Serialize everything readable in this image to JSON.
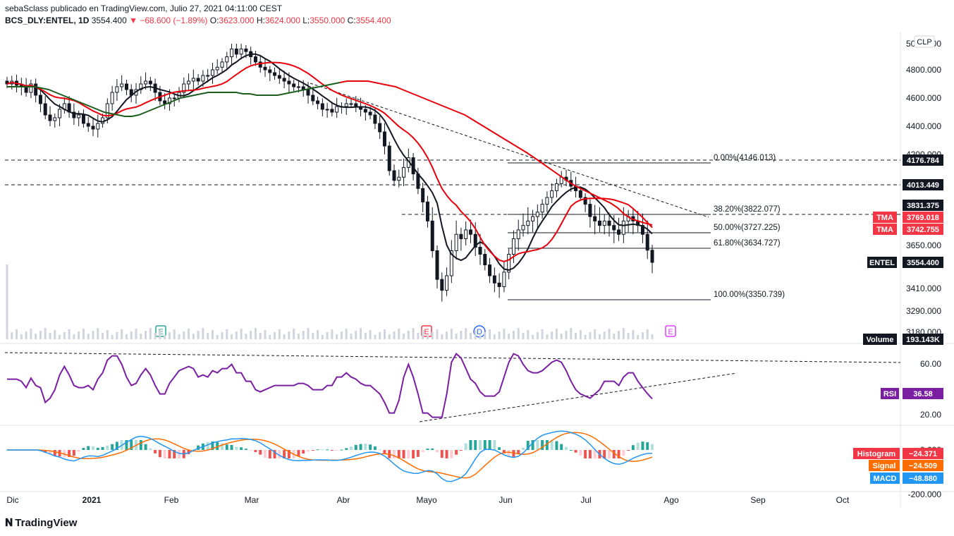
{
  "header": {
    "publisher": "sebaSclass publicado en TradingView.com, Julio 27, 2021 04:11:00 CEST",
    "symbol": "BCS_DLY:ENTEL, 1D",
    "last": "3554.400",
    "change": "▼ −68.600 (−1.89%)",
    "o_label": "O:",
    "o_val": "3623.000",
    "h_label": "H:",
    "h_val": "3624.000",
    "l_label": "L:",
    "l_val": "3550.000",
    "c_label": "C:",
    "c_val": "3554.400"
  },
  "footer": {
    "brand": "TradingView"
  },
  "chart_data": {
    "type": "candlestick",
    "currency": "CLP",
    "price_axis_ticks": [
      "5000.000",
      "4800.000",
      "4600.000",
      "4400.000",
      "4200.000",
      "3650.000",
      "3410.000",
      "3290.000",
      "3180.000"
    ],
    "time_axis_labels": [
      "Dic",
      "2021",
      "Feb",
      "Mar",
      "Abr",
      "Mayo",
      "Jun",
      "Jul",
      "Ago",
      "Sep",
      "Oct"
    ],
    "price_labels": [
      {
        "text": "4176.784",
        "style": "black"
      },
      {
        "text": "4013.449",
        "style": "black"
      },
      {
        "text": "3831.375",
        "style": "black"
      },
      {
        "name": "TMA",
        "text": "3769.018",
        "style": "red"
      },
      {
        "name": "TMA",
        "text": "3742.755",
        "style": "red"
      },
      {
        "name": "ENTEL",
        "text": "3554.400",
        "style": "black"
      },
      {
        "name": "Volume",
        "text": "193.143K",
        "style": "black"
      }
    ],
    "fib_levels": [
      {
        "label": "0.00%(4146.013)"
      },
      {
        "label": "38.20%(3822.077)"
      },
      {
        "label": "50.00%(3727.225)"
      },
      {
        "label": "61.80%(3634.727)"
      },
      {
        "label": "100.00%(3350.739)"
      }
    ],
    "events": [
      "E",
      "E",
      "D",
      "E"
    ],
    "closes": [
      4700,
      4720,
      4690,
      4680,
      4640,
      4700,
      4620,
      4560,
      4480,
      4440,
      4460,
      4520,
      4560,
      4500,
      4460,
      4480,
      4420,
      4400,
      4380,
      4420,
      4460,
      4560,
      4640,
      4680,
      4700,
      4660,
      4620,
      4660,
      4700,
      4720,
      4700,
      4640,
      4580,
      4560,
      4600,
      4600,
      4640,
      4700,
      4720,
      4740,
      4720,
      4760,
      4760,
      4800,
      4820,
      4860,
      4900,
      4960,
      4920,
      4960,
      4940,
      4900,
      4860,
      4820,
      4800,
      4780,
      4760,
      4740,
      4720,
      4700,
      4680,
      4680,
      4660,
      4620,
      4580,
      4560,
      4520,
      4520,
      4500,
      4540,
      4540,
      4560,
      4560,
      4540,
      4520,
      4500,
      4480,
      4420,
      4360,
      4260,
      4100,
      4040,
      4060,
      4120,
      4180,
      4080,
      3980,
      3860,
      3760,
      3620,
      3460,
      3400,
      3480,
      3620,
      3700,
      3680,
      3720,
      3700,
      3640,
      3600,
      3540,
      3480,
      3440,
      3420,
      3500,
      3600,
      3680,
      3720,
      3740,
      3760,
      3780,
      3800,
      3840,
      3900,
      3960,
      4020,
      4060,
      4040,
      4000,
      3960,
      3900,
      3840,
      3780,
      3760,
      3740,
      3760,
      3740,
      3720,
      3700,
      3760,
      3780,
      3760,
      3740,
      3700,
      3623,
      3554
    ],
    "tma_slow": [
      4680,
      4680,
      4680,
      4680,
      4680,
      4670,
      4660,
      4640,
      4620,
      4600,
      4580,
      4560,
      4540,
      4520,
      4500,
      4490,
      4480,
      4470,
      4470,
      4480,
      4500,
      4520,
      4540,
      4560,
      4580,
      4600,
      4610,
      4620,
      4630,
      4640,
      4640,
      4640,
      4640,
      4640,
      4630,
      4630,
      4620,
      4620,
      4620,
      4620,
      4630,
      4640,
      4650,
      4660,
      4670,
      4680,
      4690,
      4700,
      4710,
      4720,
      4720,
      4720,
      4720,
      4710,
      4700,
      4690,
      4680,
      4660,
      4640,
      4620,
      4600,
      4580,
      4560,
      4540,
      4520,
      4500,
      4480,
      4450,
      4420,
      4390,
      4360,
      4330,
      4300,
      4270,
      4240,
      4210,
      4180,
      4150,
      4120,
      4090,
      4060,
      4030,
      4000,
      3970,
      3940,
      3910,
      3880,
      3850,
      3820,
      3790,
      3770,
      3760,
      3750,
      3742
    ]
  },
  "indicators": {
    "rsi": {
      "name": "RSI",
      "value": "36.58",
      "ticks": [
        "60.00",
        "20.00"
      ]
    },
    "macd": {
      "ticks": [
        "0.000",
        "-200.000"
      ],
      "histogram": {
        "name": "Histogram",
        "value": "−24.371"
      },
      "signal": {
        "name": "Signal",
        "value": "−24.509"
      },
      "macd": {
        "name": "MACD",
        "value": "−48.880"
      }
    }
  }
}
